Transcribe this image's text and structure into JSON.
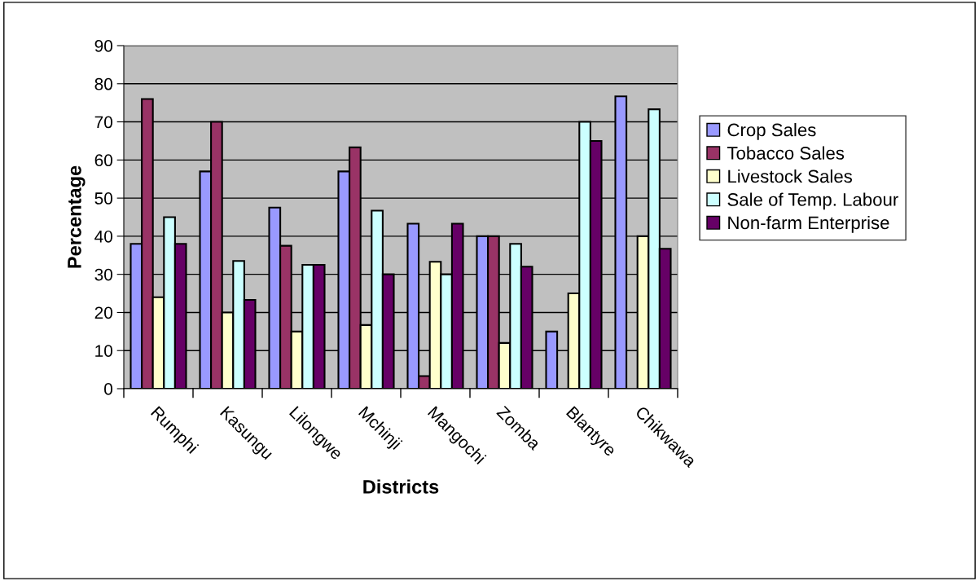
{
  "chart_data": {
    "type": "bar",
    "xlabel": "Districts",
    "ylabel": "Percentage",
    "categories": [
      "Rumphi",
      "Kasungu",
      "Lilongwe",
      "Mchinji",
      "Mangochi",
      "Zomba",
      "Blantyre",
      "Chikwawa"
    ],
    "series": [
      {
        "name": "Crop Sales",
        "color": "#9999ff",
        "values": [
          38,
          57,
          47.5,
          57,
          43.3,
          40,
          15,
          76.7
        ]
      },
      {
        "name": "Tobacco Sales",
        "color": "#993366",
        "values": [
          76,
          70,
          37.5,
          63.3,
          3.3,
          40,
          null,
          null
        ]
      },
      {
        "name": "Livestock Sales",
        "color": "#ffffcc",
        "values": [
          24,
          20,
          15,
          16.7,
          33.3,
          12,
          25,
          40
        ]
      },
      {
        "name": "Sale of Temp. Labour",
        "color": "#ccffff",
        "values": [
          45,
          33.5,
          32.5,
          46.7,
          30,
          38,
          70,
          73.3
        ]
      },
      {
        "name": "Non-farm Enterprise",
        "color": "#660066",
        "values": [
          38,
          23.3,
          32.5,
          30,
          43.3,
          32,
          65,
          36.7
        ]
      }
    ],
    "ylim": [
      0,
      90
    ],
    "yticks": [
      0,
      10,
      20,
      30,
      40,
      50,
      60,
      70,
      80,
      90
    ],
    "grid": "y",
    "legend": "right"
  }
}
